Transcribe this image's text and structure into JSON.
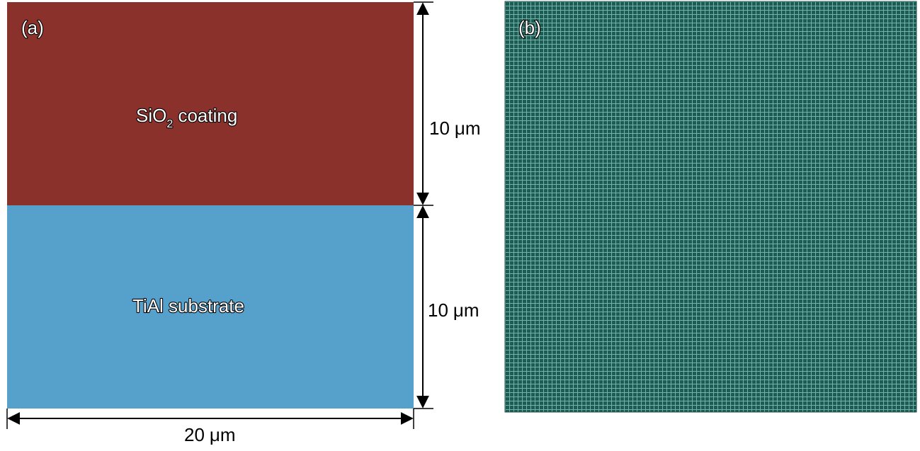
{
  "colors": {
    "coating": "#8b312b",
    "substrate": "#56a0cc",
    "mesh_background": "#1f5b55",
    "mesh_line": "#6fb3a9",
    "dimension_line": "#000000"
  },
  "panel_a": {
    "label": "(a)",
    "coating": {
      "name_prefix": "SiO",
      "name_subscript": "2",
      "name_suffix": " coating",
      "thickness": 10,
      "thickness_label_number": "10",
      "thickness_label_unit": "μm"
    },
    "substrate": {
      "name": "TiAl substrate",
      "thickness": 10,
      "thickness_label_number": "10",
      "thickness_label_unit": "μm"
    },
    "width": 20,
    "width_label_number": "20",
    "width_label_unit": "μm"
  },
  "panel_b": {
    "label": "(b)",
    "mesh_pattern": "uniform fine quadrilateral grid"
  }
}
